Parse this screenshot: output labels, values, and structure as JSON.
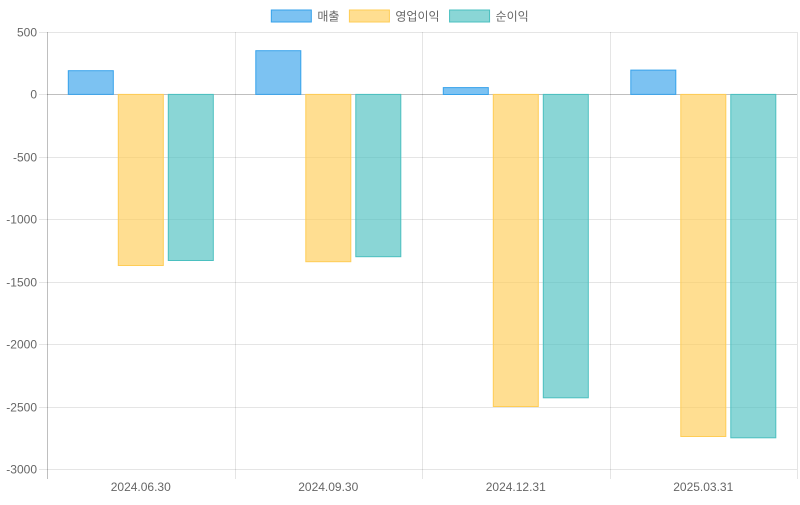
{
  "chart_data": {
    "type": "bar",
    "categories": [
      "2024.06.30",
      "2024.09.30",
      "2024.12.31",
      "2025.03.31"
    ],
    "series": [
      {
        "name": "매출",
        "values": [
          190,
          350,
          55,
          195
        ],
        "color": "#36a2eb"
      },
      {
        "name": "영업이익",
        "values": [
          -1370,
          -1340,
          -2500,
          -2740
        ],
        "color": "#ffcd56"
      },
      {
        "name": "순이익",
        "values": [
          -1330,
          -1300,
          -2430,
          -2750
        ],
        "color": "#4bc0c0"
      }
    ],
    "yticks": [
      "500",
      "0",
      "-500",
      "-1000",
      "-1500",
      "-2000",
      "-2500",
      "-3000"
    ],
    "ylim": [
      -3000,
      500
    ],
    "legend": "top",
    "grid": true
  }
}
